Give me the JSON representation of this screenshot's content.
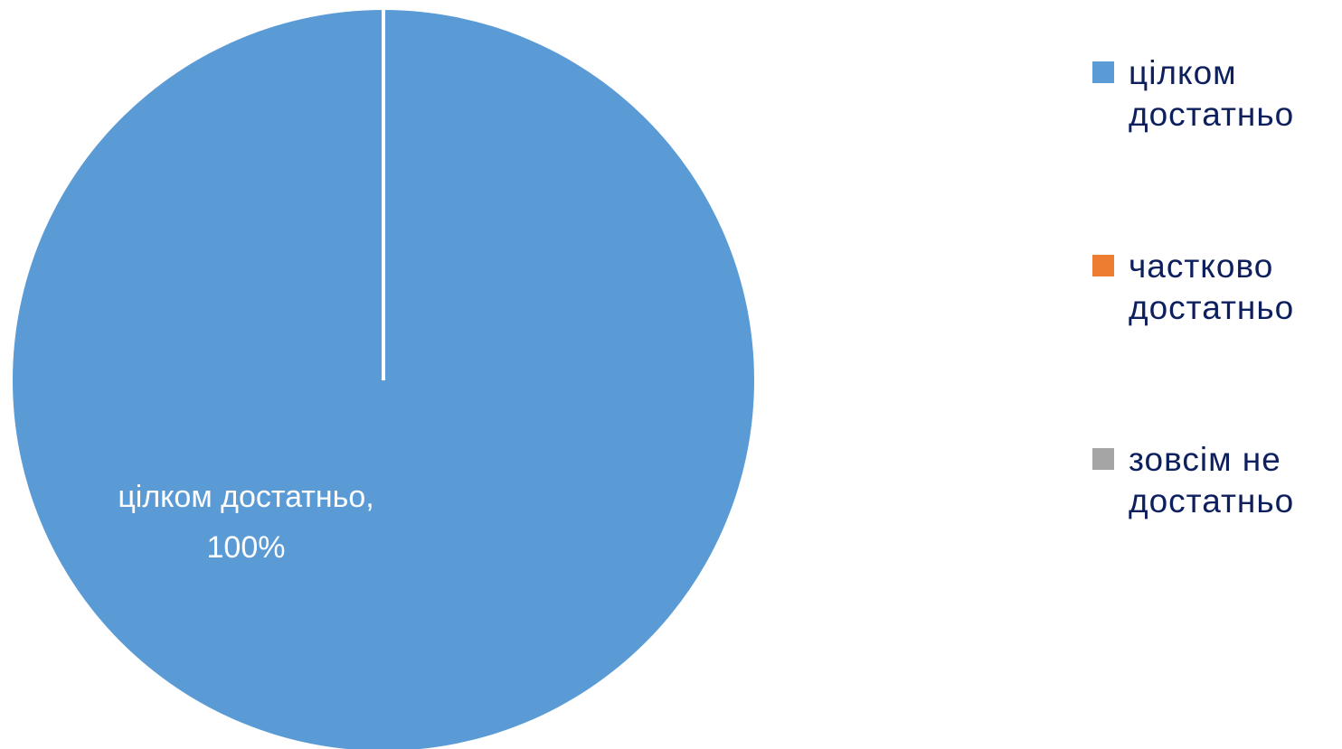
{
  "chart_data": {
    "type": "pie",
    "title": "",
    "categories": [
      "цілком достатньо",
      "частково достатньо",
      "зовсім не достатньо"
    ],
    "values": [
      100,
      0,
      0
    ],
    "unit": "%",
    "colors": [
      "#5b9bd5",
      "#ed7d31",
      "#a5a5a5"
    ],
    "legend_position": "right",
    "data_labels": [
      {
        "category": "цілком достатньо",
        "line1": "цілком достатньо,",
        "line2": "100%"
      }
    ]
  },
  "legend": {
    "items": [
      {
        "label_line1": "цілком",
        "label_line2": "достатньо",
        "color": "#5b9bd5"
      },
      {
        "label_line1": "частково",
        "label_line2": "достатньо",
        "color": "#ed7d31"
      },
      {
        "label_line1": "зовсім не",
        "label_line2": "достатньо",
        "color": "#a5a5a5"
      }
    ]
  }
}
